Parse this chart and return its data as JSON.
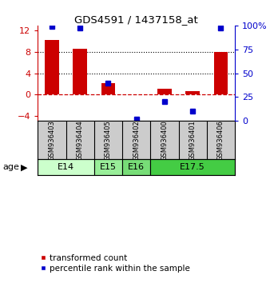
{
  "title": "GDS4591 / 1437158_at",
  "samples": [
    "GSM936403",
    "GSM936404",
    "GSM936405",
    "GSM936402",
    "GSM936400",
    "GSM936401",
    "GSM936406"
  ],
  "transformed_count": [
    10.2,
    8.6,
    2.2,
    0.05,
    1.1,
    0.7,
    8.0
  ],
  "percentile_rank": [
    99,
    97,
    40,
    2,
    20,
    10,
    97
  ],
  "bar_color": "#cc0000",
  "dot_color": "#0000cc",
  "ylim_left": [
    -5,
    13
  ],
  "ylim_right": [
    0,
    100
  ],
  "yticks_left": [
    -4,
    0,
    4,
    8,
    12
  ],
  "yticks_right": [
    0,
    25,
    50,
    75,
    100
  ],
  "yticklabels_right": [
    "0",
    "25",
    "50",
    "75",
    "100%"
  ],
  "dotted_lines": [
    4,
    8
  ],
  "age_groups": [
    {
      "label": "E14",
      "span": [
        0,
        2
      ]
    },
    {
      "label": "E15",
      "span": [
        2,
        3
      ]
    },
    {
      "label": "E16",
      "span": [
        3,
        4
      ]
    },
    {
      "label": "E17.5",
      "span": [
        4,
        7
      ]
    }
  ],
  "age_group_colors": [
    "#ccffcc",
    "#99ee99",
    "#77dd77",
    "#44cc44"
  ],
  "legend_bar_label": "transformed count",
  "legend_dot_label": "percentile rank within the sample",
  "background_color": "#ffffff",
  "sample_box_color": "#cccccc"
}
